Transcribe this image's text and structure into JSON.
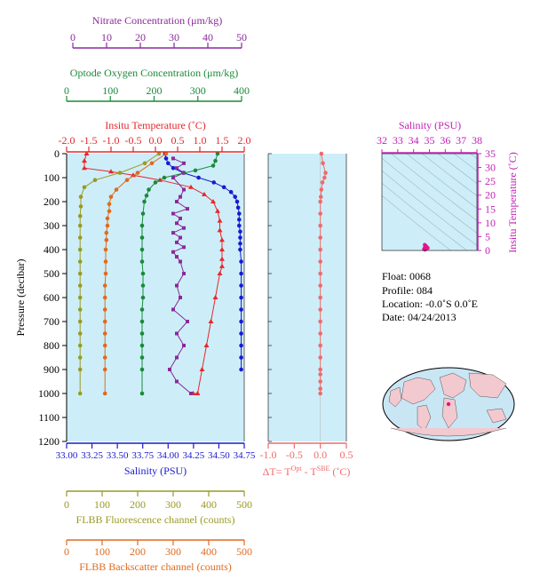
{
  "colors": {
    "nitrate": "#8B2A9B",
    "oxygen": "#1A8A3A",
    "temperature": "#E8262B",
    "salinity": "#1A1ACF",
    "fluorescence": "#9A9A22",
    "backscatter": "#E06A1E",
    "dt": "#F06A6A",
    "ts_axis": "#C21FB5",
    "plot_bg": "#CDEEF8"
  },
  "axes": {
    "nitrate": {
      "label": "Nitrate Concentration (μm/kg)",
      "ticks": [
        "0",
        "10",
        "20",
        "30",
        "40",
        "50"
      ]
    },
    "oxygen": {
      "label": "Optode Oxygen Concentration (μm/kg)",
      "ticks": [
        "0",
        "100",
        "200",
        "300",
        "400"
      ]
    },
    "temperature": {
      "label": "Insitu Temperature (˚C)",
      "ticks": [
        "-2.0",
        "-1.5",
        "-1.0",
        "-0.5",
        "0.0",
        "0.5",
        "1.0",
        "1.5",
        "2.0"
      ]
    },
    "salinity": {
      "label": "Salinity (PSU)",
      "ticks": [
        "33.00",
        "33.25",
        "33.50",
        "33.75",
        "34.00",
        "34.25",
        "34.50",
        "34.75"
      ]
    },
    "pressure": {
      "label": "Pressure (decibar)",
      "ticks": [
        "0",
        "100",
        "200",
        "300",
        "400",
        "500",
        "600",
        "700",
        "800",
        "900",
        "1000",
        "1100",
        "1200"
      ]
    },
    "dt": {
      "label_parts": [
        "ΔT= T",
        "Opt",
        " - T",
        "SBE",
        " (˚C)"
      ],
      "ticks": [
        "-1.0",
        "-0.5",
        "0.0",
        "0.5"
      ]
    },
    "fluorescence": {
      "label": "FLBB Fluorescence channel (counts)",
      "ticks": [
        "0",
        "100",
        "200",
        "300",
        "400",
        "500"
      ]
    },
    "backscatter": {
      "label": "FLBB Backscatter channel (counts)",
      "ticks": [
        "0",
        "100",
        "200",
        "300",
        "400",
        "500"
      ]
    },
    "ts_salinity": {
      "label": "Salinity (PSU)",
      "ticks": [
        "32",
        "33",
        "34",
        "35",
        "36",
        "37",
        "38"
      ]
    },
    "ts_temperature": {
      "label": "Insitu Temperature (˚C)",
      "ticks": [
        "0",
        "5",
        "10",
        "15",
        "20",
        "25",
        "30",
        "35"
      ]
    }
  },
  "info": {
    "float": "Float:  0068",
    "profile": "Profile:  084",
    "location": "Location:  -0.0˚S   0.0˚E",
    "date": "Date:  04/24/2013"
  },
  "chart_data": [
    {
      "type": "line",
      "y_axis": "pressure (decibar)",
      "ylim": [
        1200,
        0
      ],
      "series": [
        {
          "name": "Salinity (PSU)",
          "xlim": [
            33.0,
            34.75
          ],
          "x": [
            33.97,
            33.98,
            34.0,
            34.05,
            34.15,
            34.3,
            34.45,
            34.55,
            34.62,
            34.66,
            34.68,
            34.69,
            34.7,
            34.7,
            34.7,
            34.71,
            34.71,
            34.71,
            34.71,
            34.72,
            34.72,
            34.72,
            34.72,
            34.72,
            34.72,
            34.72,
            34.72,
            34.72,
            34.72
          ],
          "y": [
            0,
            20,
            40,
            60,
            80,
            100,
            120,
            140,
            160,
            180,
            200,
            225,
            250,
            275,
            300,
            325,
            350,
            375,
            400,
            450,
            500,
            550,
            600,
            650,
            700,
            750,
            800,
            850,
            900
          ]
        },
        {
          "name": "Insitu Temperature (˚C)",
          "xlim": [
            -2.0,
            2.0
          ],
          "x": [
            -1.55,
            -1.6,
            -1.6,
            -1.0,
            -0.5,
            0.1,
            0.8,
            1.1,
            1.3,
            1.4,
            1.45,
            1.45,
            1.5,
            1.5,
            1.5,
            1.5,
            1.45,
            1.35,
            1.25,
            1.15,
            1.05,
            0.95,
            0.85
          ],
          "y": [
            0,
            30,
            60,
            75,
            90,
            110,
            140,
            170,
            200,
            240,
            280,
            320,
            360,
            400,
            440,
            470,
            500,
            600,
            700,
            800,
            900,
            1000,
            1000
          ]
        },
        {
          "name": "Nitrate Concentration (μm/kg)",
          "xlim": [
            0,
            50
          ],
          "x": [
            30,
            33,
            31,
            33,
            30,
            33,
            32,
            31,
            34,
            30,
            32,
            31,
            33,
            30,
            32,
            31,
            33,
            30,
            31,
            32,
            33,
            31,
            32,
            30,
            34,
            31,
            33,
            31,
            29,
            31,
            35
          ],
          "y": [
            20,
            40,
            60,
            80,
            100,
            150,
            180,
            200,
            230,
            250,
            270,
            290,
            310,
            330,
            350,
            370,
            390,
            410,
            430,
            450,
            500,
            550,
            600,
            650,
            700,
            750,
            800,
            850,
            900,
            950,
            1000
          ]
        },
        {
          "name": "Optode Oxygen Concentration (μm/kg)",
          "xlim": [
            0,
            400
          ],
          "x": [
            340,
            335,
            330,
            290,
            220,
            200,
            185,
            180,
            175,
            172,
            170,
            170,
            170,
            170,
            172,
            172,
            172,
            170,
            170,
            170,
            170,
            170,
            170,
            170
          ],
          "y": [
            0,
            30,
            50,
            70,
            100,
            120,
            150,
            175,
            200,
            250,
            300,
            350,
            400,
            450,
            500,
            550,
            600,
            650,
            700,
            750,
            800,
            850,
            900,
            1000
          ]
        },
        {
          "name": "FLBB Fluorescence channel (counts)",
          "xlim": [
            0,
            500
          ],
          "x": [
            260,
            220,
            150,
            80,
            50,
            40,
            40,
            38,
            38,
            38,
            38,
            38,
            38,
            38,
            38,
            38,
            38,
            38,
            38,
            38,
            38,
            38
          ],
          "y": [
            0,
            40,
            80,
            110,
            140,
            180,
            220,
            260,
            300,
            350,
            400,
            450,
            500,
            550,
            600,
            650,
            700,
            750,
            800,
            850,
            900,
            1000
          ]
        },
        {
          "name": "FLBB Backscatter channel (counts)",
          "xlim": [
            0,
            500
          ],
          "x": [
            280,
            240,
            200,
            170,
            140,
            125,
            120,
            120,
            115,
            115,
            112,
            112,
            110,
            110,
            110,
            108,
            108,
            108,
            108,
            108,
            108,
            108,
            108,
            108
          ],
          "y": [
            0,
            40,
            80,
            110,
            150,
            180,
            210,
            240,
            270,
            300,
            330,
            360,
            400,
            450,
            500,
            550,
            600,
            650,
            700,
            750,
            800,
            850,
            900,
            1000
          ]
        },
        {
          "name": "ΔT",
          "xlim": [
            -1.0,
            0.5
          ],
          "x": [
            0.02,
            0.05,
            0.1,
            0.08,
            0.04,
            0.02,
            0.01,
            0.0,
            0.0,
            0.0,
            0.0,
            0.0,
            0.0,
            0.0,
            0.0,
            0.0,
            0.0,
            0.0,
            0.0,
            0.0,
            0.0,
            0.0,
            0.0,
            0.0,
            0.0,
            0.0
          ],
          "y": [
            0,
            40,
            80,
            100,
            120,
            150,
            180,
            200,
            250,
            300,
            350,
            400,
            450,
            500,
            550,
            600,
            650,
            700,
            750,
            800,
            850,
            900,
            920,
            950,
            980,
            1000
          ]
        }
      ]
    },
    {
      "type": "scatter",
      "xlabel": "Salinity (PSU)",
      "ylabel": "Insitu Temperature (˚C)",
      "xlim": [
        32,
        38
      ],
      "ylim": [
        0,
        35
      ],
      "x": [
        34.65,
        34.7,
        34.72,
        34.75,
        34.8,
        34.85,
        34.78,
        34.72,
        34.9,
        34.7
      ],
      "y": [
        0.5,
        1.0,
        1.4,
        1.0,
        0.6,
        1.2,
        1.7,
        0.3,
        0.9,
        2.1
      ]
    }
  ]
}
